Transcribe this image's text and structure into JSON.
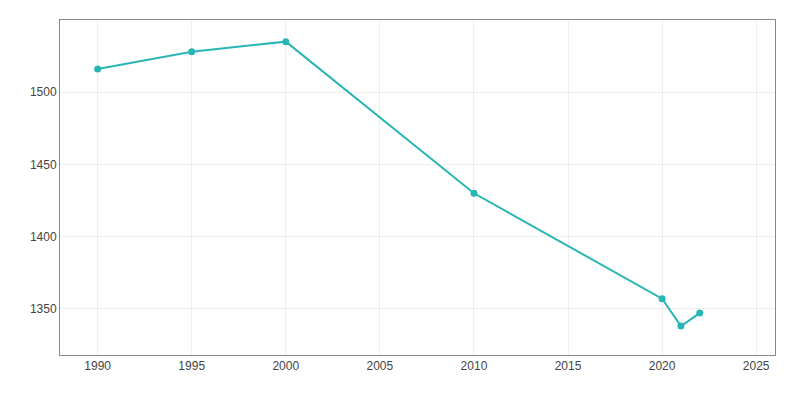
{
  "chart_data": {
    "type": "line",
    "x": [
      1990,
      1995,
      2000,
      2010,
      2020,
      2021,
      2022
    ],
    "values": [
      1516,
      1528,
      1535,
      1430,
      1357,
      1338,
      1347
    ],
    "color": "#2ab5b5",
    "marker": "circle",
    "xlim": [
      1988,
      2026
    ],
    "ylim": [
      1318,
      1550
    ],
    "xticks": [
      1990,
      1995,
      2000,
      2005,
      2010,
      2015,
      2020,
      2025
    ],
    "yticks": [
      1350,
      1400,
      1450,
      1500
    ],
    "grid": true
  }
}
